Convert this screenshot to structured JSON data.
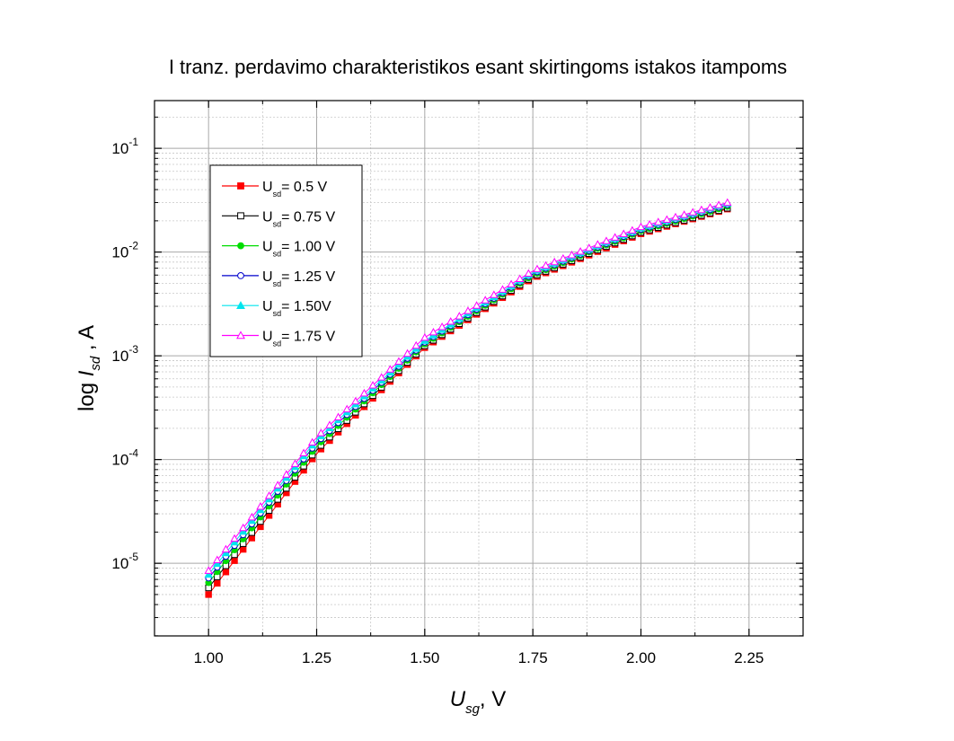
{
  "chart_data": {
    "type": "scatter",
    "title": "I tranz. perdavimo charakteristikos esant skirtingoms istakos itampoms",
    "xlabel": {
      "main": "U",
      "sub": "sg",
      "suffix": ", V"
    },
    "ylabel": {
      "prefix": "log ",
      "main": "I",
      "sub": "sd",
      "suffix": " , A"
    },
    "xlim": [
      0.875,
      2.375
    ],
    "ylim_exp": [
      -5.7,
      -0.54
    ],
    "y_scale": "log",
    "grid": true,
    "legend_position": "top-left",
    "x_ticks": [
      {
        "v": 1.0,
        "label": "1.00"
      },
      {
        "v": 1.25,
        "label": "1.25"
      },
      {
        "v": 1.5,
        "label": "1.50"
      },
      {
        "v": 1.75,
        "label": "1.75"
      },
      {
        "v": 2.0,
        "label": "2.00"
      },
      {
        "v": 2.25,
        "label": "2.25"
      }
    ],
    "y_ticks": [
      {
        "exp": -5,
        "base": "10",
        "power": "-5"
      },
      {
        "exp": -4,
        "base": "10",
        "power": "-4"
      },
      {
        "exp": -3,
        "base": "10",
        "power": "-3"
      },
      {
        "exp": -2,
        "base": "10",
        "power": "-2"
      },
      {
        "exp": -1,
        "base": "10",
        "power": "-1"
      }
    ],
    "x_range": {
      "start": 1.0,
      "end": 2.2,
      "step": 0.02
    },
    "series": [
      {
        "name": "U",
        "name_sub": "sd",
        "name_suffix": "= 0.5 V",
        "color": "#ff0000",
        "marker": "square-filled",
        "anchors": [
          [
            1.0,
            5e-06
          ],
          [
            1.25,
            0.000115
          ],
          [
            1.5,
            0.0012
          ],
          [
            1.75,
            0.0056
          ],
          [
            2.0,
            0.015
          ],
          [
            2.2,
            0.026
          ]
        ]
      },
      {
        "name": "U",
        "name_sub": "sd",
        "name_suffix": "= 0.75 V",
        "color": "#000000",
        "marker": "square-open",
        "anchors": [
          [
            1.0,
            5.8e-06
          ],
          [
            1.25,
            0.000125
          ],
          [
            1.5,
            0.00125
          ],
          [
            1.75,
            0.0058
          ],
          [
            2.0,
            0.0155
          ],
          [
            2.2,
            0.0265
          ]
        ]
      },
      {
        "name": "U",
        "name_sub": "sd",
        "name_suffix": "= 1.00 V",
        "color": "#00dd00",
        "marker": "circle-filled",
        "anchors": [
          [
            1.0,
            6.5e-06
          ],
          [
            1.25,
            0.000135
          ],
          [
            1.5,
            0.0013
          ],
          [
            1.75,
            0.006
          ],
          [
            2.0,
            0.016
          ],
          [
            2.2,
            0.0275
          ]
        ]
      },
      {
        "name": "U",
        "name_sub": "sd",
        "name_suffix": "= 1.25 V",
        "color": "#0000cc",
        "marker": "circle-open",
        "anchors": [
          [
            1.0,
            7.2e-06
          ],
          [
            1.25,
            0.000145
          ],
          [
            1.5,
            0.00135
          ],
          [
            1.75,
            0.0062
          ],
          [
            2.0,
            0.0165
          ],
          [
            2.2,
            0.0285
          ]
        ]
      },
      {
        "name": "U",
        "name_sub": "sd",
        "name_suffix": "= 1.50V",
        "color": "#00e5ee",
        "marker": "triangle-filled",
        "anchors": [
          [
            1.0,
            7.8e-06
          ],
          [
            1.25,
            0.000155
          ],
          [
            1.5,
            0.0014
          ],
          [
            1.75,
            0.0064
          ],
          [
            2.0,
            0.017
          ],
          [
            2.2,
            0.0295
          ]
        ]
      },
      {
        "name": "U",
        "name_sub": "sd",
        "name_suffix": "= 1.75 V",
        "color": "#ff00ff",
        "marker": "triangle-open",
        "anchors": [
          [
            1.0,
            8.5e-06
          ],
          [
            1.25,
            0.000165
          ],
          [
            1.5,
            0.0015
          ],
          [
            1.75,
            0.0066
          ],
          [
            2.0,
            0.0175
          ],
          [
            2.2,
            0.03
          ]
        ]
      }
    ]
  }
}
